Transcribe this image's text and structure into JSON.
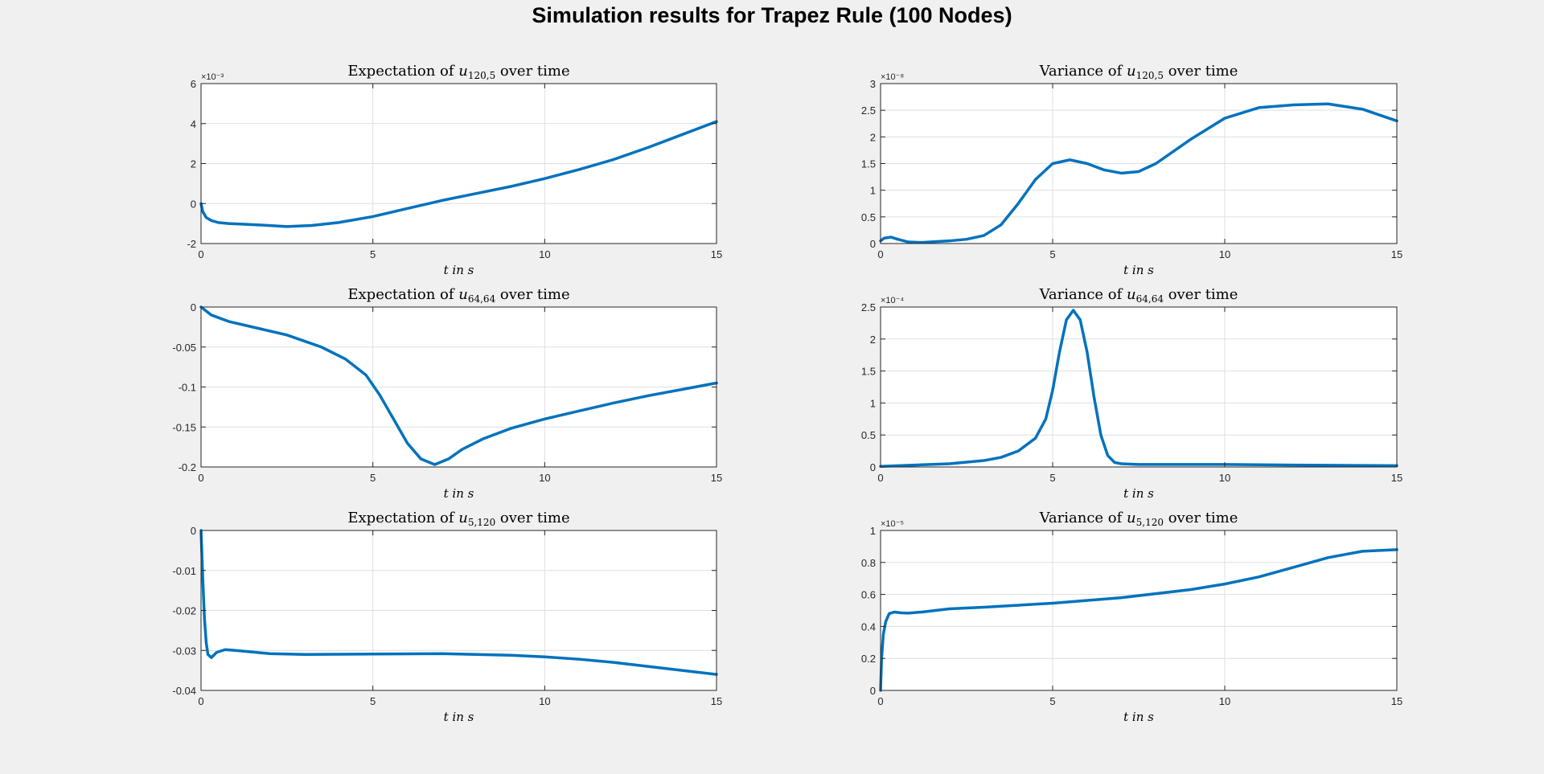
{
  "figure": {
    "title": "Simulation results for Trapez Rule (100 Nodes)"
  },
  "colors": {
    "series": "#0072bd",
    "grid": "#dfdfdf",
    "axis": "#262626",
    "background": "#f0f0f0"
  },
  "chart_data": [
    {
      "type": "line",
      "title": "Expectation of u120,5 over time",
      "title_text": "Expectation of ",
      "title_var": "u",
      "title_sub": "120,5",
      "title_end": " over time",
      "xlabel": "t in s",
      "xlim": [
        0,
        15
      ],
      "ylim": [
        -2,
        6
      ],
      "y_exponent": "×10⁻³",
      "xticks": [
        0,
        5,
        10,
        15
      ],
      "yticks": [
        -2,
        0,
        2,
        4,
        6
      ],
      "ytick_labels": [
        "-2",
        "0",
        "2",
        "4",
        "6"
      ],
      "grid": true,
      "x": [
        0,
        0.05,
        0.15,
        0.3,
        0.5,
        0.8,
        1.2,
        1.8,
        2.5,
        3.2,
        4,
        5,
        6,
        7,
        8,
        9,
        10,
        11,
        12,
        13,
        14,
        15
      ],
      "y": [
        0,
        -0.4,
        -0.7,
        -0.85,
        -0.95,
        -1.0,
        -1.03,
        -1.08,
        -1.15,
        -1.1,
        -0.95,
        -0.65,
        -0.25,
        0.15,
        0.5,
        0.85,
        1.25,
        1.7,
        2.2,
        2.8,
        3.45,
        4.1
      ]
    },
    {
      "type": "line",
      "title": "Variance of u120,5 over time",
      "title_text": "Variance of ",
      "title_var": "u",
      "title_sub": "120,5",
      "title_end": " over time",
      "xlabel": "t in s",
      "xlim": [
        0,
        15
      ],
      "ylim": [
        0,
        3
      ],
      "y_exponent": "×10⁻⁸",
      "xticks": [
        0,
        5,
        10,
        15
      ],
      "yticks": [
        0,
        0.5,
        1,
        1.5,
        2,
        2.5,
        3
      ],
      "ytick_labels": [
        "0",
        "0.5",
        "1",
        "1.5",
        "2",
        "2.5",
        "3"
      ],
      "grid": true,
      "x": [
        0,
        0.1,
        0.3,
        0.5,
        0.8,
        1.2,
        2,
        2.5,
        3,
        3.5,
        4,
        4.5,
        5,
        5.5,
        6,
        6.5,
        7,
        7.5,
        8,
        9,
        10,
        11,
        12,
        13,
        14,
        15
      ],
      "y": [
        0.05,
        0.1,
        0.12,
        0.08,
        0.03,
        0.02,
        0.05,
        0.08,
        0.15,
        0.35,
        0.75,
        1.2,
        1.5,
        1.57,
        1.5,
        1.38,
        1.32,
        1.35,
        1.5,
        1.95,
        2.35,
        2.55,
        2.6,
        2.62,
        2.52,
        2.3
      ]
    },
    {
      "type": "line",
      "title": "Expectation of u64,64 over time",
      "title_text": "Expectation of ",
      "title_var": "u",
      "title_sub": "64,64",
      "title_end": " over time",
      "xlabel": "t in s",
      "xlim": [
        0,
        15
      ],
      "ylim": [
        -0.2,
        0
      ],
      "y_exponent": "",
      "xticks": [
        0,
        5,
        10,
        15
      ],
      "yticks": [
        -0.2,
        -0.15,
        -0.1,
        -0.05,
        0
      ],
      "ytick_labels": [
        "-0.2",
        "-0.15",
        "-0.1",
        "-0.05",
        "0"
      ],
      "grid": true,
      "x": [
        0,
        0.3,
        0.8,
        1.5,
        2.5,
        3.5,
        4.2,
        4.8,
        5.2,
        5.6,
        6,
        6.4,
        6.8,
        7.2,
        7.6,
        8.2,
        9,
        10,
        11,
        12,
        13,
        14,
        15
      ],
      "y": [
        0,
        -0.01,
        -0.018,
        -0.025,
        -0.035,
        -0.05,
        -0.065,
        -0.085,
        -0.11,
        -0.14,
        -0.17,
        -0.19,
        -0.197,
        -0.19,
        -0.178,
        -0.165,
        -0.152,
        -0.14,
        -0.13,
        -0.12,
        -0.111,
        -0.103,
        -0.095
      ]
    },
    {
      "type": "line",
      "title": "Variance of u64,64 over time",
      "title_text": "Variance of ",
      "title_var": "u",
      "title_sub": "64,64",
      "title_end": " over time",
      "xlabel": "t in s",
      "xlim": [
        0,
        15
      ],
      "ylim": [
        0,
        2.5
      ],
      "y_exponent": "×10⁻⁴",
      "xticks": [
        0,
        5,
        10,
        15
      ],
      "yticks": [
        0,
        0.5,
        1,
        1.5,
        2,
        2.5
      ],
      "ytick_labels": [
        "0",
        "0.5",
        "1",
        "1.5",
        "2",
        "2.5"
      ],
      "grid": true,
      "x": [
        0,
        1,
        2,
        3,
        3.5,
        4,
        4.5,
        4.8,
        5,
        5.2,
        5.4,
        5.6,
        5.8,
        6,
        6.2,
        6.4,
        6.6,
        6.8,
        7,
        7.5,
        8,
        10,
        12,
        15
      ],
      "y": [
        0.01,
        0.03,
        0.05,
        0.1,
        0.15,
        0.25,
        0.45,
        0.75,
        1.2,
        1.8,
        2.3,
        2.45,
        2.3,
        1.8,
        1.1,
        0.5,
        0.18,
        0.07,
        0.05,
        0.04,
        0.04,
        0.04,
        0.03,
        0.02
      ]
    },
    {
      "type": "line",
      "title": "Expectation of u5,120 over time",
      "title_text": "Expectation of ",
      "title_var": "u",
      "title_sub": "5,120",
      "title_end": " over time",
      "xlabel": "t in s",
      "xlim": [
        0,
        15
      ],
      "ylim": [
        -0.04,
        0
      ],
      "y_exponent": "",
      "xticks": [
        0,
        5,
        10,
        15
      ],
      "yticks": [
        -0.04,
        -0.03,
        -0.02,
        -0.01,
        0
      ],
      "ytick_labels": [
        "-0.04",
        "-0.03",
        "-0.02",
        "-0.01",
        "0"
      ],
      "grid": true,
      "x": [
        0,
        0.05,
        0.1,
        0.15,
        0.2,
        0.3,
        0.45,
        0.7,
        1,
        2,
        3,
        5,
        7,
        9,
        10,
        11,
        12,
        13,
        14,
        15
      ],
      "y": [
        0,
        -0.012,
        -0.022,
        -0.028,
        -0.031,
        -0.0318,
        -0.0305,
        -0.0298,
        -0.03,
        -0.0308,
        -0.031,
        -0.0309,
        -0.0308,
        -0.0312,
        -0.0316,
        -0.0322,
        -0.033,
        -0.034,
        -0.035,
        -0.036
      ]
    },
    {
      "type": "line",
      "title": "Variance of u5,120 over time",
      "title_text": "Variance of ",
      "title_var": "u",
      "title_sub": "5,120",
      "title_end": " over time",
      "xlabel": "t in s",
      "xlim": [
        0,
        15
      ],
      "ylim": [
        0,
        1
      ],
      "y_exponent": "×10⁻⁵",
      "xticks": [
        0,
        5,
        10,
        15
      ],
      "yticks": [
        0,
        0.2,
        0.4,
        0.6,
        0.8,
        1
      ],
      "ytick_labels": [
        "0",
        "0.2",
        "0.4",
        "0.6",
        "0.8",
        "1"
      ],
      "grid": true,
      "x": [
        0,
        0.03,
        0.08,
        0.15,
        0.25,
        0.4,
        0.6,
        0.8,
        1.2,
        2,
        3,
        5,
        7,
        9,
        10,
        11,
        12,
        13,
        14,
        15
      ],
      "y": [
        0,
        0.2,
        0.35,
        0.43,
        0.48,
        0.49,
        0.485,
        0.483,
        0.49,
        0.51,
        0.52,
        0.545,
        0.58,
        0.63,
        0.665,
        0.71,
        0.77,
        0.83,
        0.87,
        0.88
      ]
    }
  ]
}
